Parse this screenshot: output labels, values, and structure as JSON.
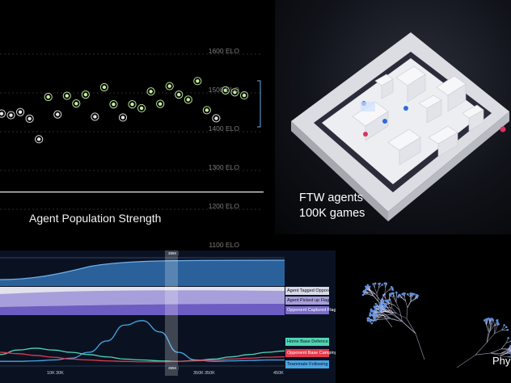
{
  "chart_data": [
    {
      "type": "scatter",
      "title": "Agent Population Strength",
      "y_ticks": [
        "1600 ELO",
        "1500 ELO",
        "1400 ELO",
        "1300 ELO",
        "1200 ELO",
        "1100 ELO"
      ],
      "ylim": [
        1100,
        1600
      ],
      "reference_line_y": 1230,
      "points": [
        {
          "x": 0,
          "y": 1432
        },
        {
          "x": 1,
          "y": 1428
        },
        {
          "x": 2,
          "y": 1436
        },
        {
          "x": 3,
          "y": 1419
        },
        {
          "x": 4,
          "y": 1366
        },
        {
          "x": 5,
          "y": 1475
        },
        {
          "x": 6,
          "y": 1430
        },
        {
          "x": 7,
          "y": 1478
        },
        {
          "x": 8,
          "y": 1458
        },
        {
          "x": 9,
          "y": 1481
        },
        {
          "x": 10,
          "y": 1424
        },
        {
          "x": 11,
          "y": 1500
        },
        {
          "x": 12,
          "y": 1456
        },
        {
          "x": 13,
          "y": 1422
        },
        {
          "x": 14,
          "y": 1456
        },
        {
          "x": 15,
          "y": 1446
        },
        {
          "x": 16,
          "y": 1489
        },
        {
          "x": 17,
          "y": 1457
        },
        {
          "x": 18,
          "y": 1503
        },
        {
          "x": 19,
          "y": 1481
        },
        {
          "x": 20,
          "y": 1468
        },
        {
          "x": 21,
          "y": 1516
        },
        {
          "x": 22,
          "y": 1441
        },
        {
          "x": 23,
          "y": 1420
        },
        {
          "x": 24,
          "y": 1492
        },
        {
          "x": 25,
          "y": 1487
        },
        {
          "x": 26,
          "y": 1479
        }
      ]
    },
    {
      "type": "area",
      "x_ticks": [
        "10K",
        "30K",
        "350K",
        "350K",
        "450K"
      ],
      "marker_top": "385K",
      "marker_bottom": "385K",
      "legend": [
        {
          "name": "Agent Tagged Opponent",
          "color": "#d7d9e6",
          "text_color": "#111111"
        },
        {
          "name": "Agent Picked up Flag",
          "color": "#a79fdc",
          "text_color": "#111111"
        },
        {
          "name": "Opponent Captured Flag",
          "color": "#7c6ccc",
          "text_color": "#ffffff"
        },
        {
          "name": "Home Base Defence",
          "color": "#4fd4b6",
          "text_color": "#111111"
        },
        {
          "name": "Opponent Base Camping",
          "color": "#e33b4e",
          "text_color": "#ffffff"
        },
        {
          "name": "Teammate Following",
          "color": "#47a6e8",
          "text_color": "#111111"
        }
      ],
      "series": [
        {
          "name": "Teammate Following",
          "values": [
            0.05,
            0.05,
            0.06,
            0.08,
            0.12,
            0.25,
            0.5,
            0.85,
            0.95,
            0.7,
            0.25,
            0.08,
            0.05,
            0.06,
            0.07,
            0.08,
            0.08
          ]
        },
        {
          "name": "Home Base Defence",
          "values": [
            0.2,
            0.3,
            0.34,
            0.3,
            0.25,
            0.2,
            0.15,
            0.1,
            0.08,
            0.06,
            0.05,
            0.07,
            0.1,
            0.15,
            0.2,
            0.25,
            0.28
          ]
        },
        {
          "name": "Opponent Base Camping",
          "values": [
            0.25,
            0.22,
            0.18,
            0.14,
            0.1,
            0.08,
            0.06,
            0.05,
            0.04,
            0.04,
            0.05,
            0.06,
            0.08,
            0.1,
            0.12,
            0.14,
            0.15
          ]
        }
      ]
    }
  ],
  "arena": {
    "caption_line1": "FTW agents",
    "caption_line2": "100K games"
  },
  "phylogeny": {
    "label": "Phy"
  }
}
